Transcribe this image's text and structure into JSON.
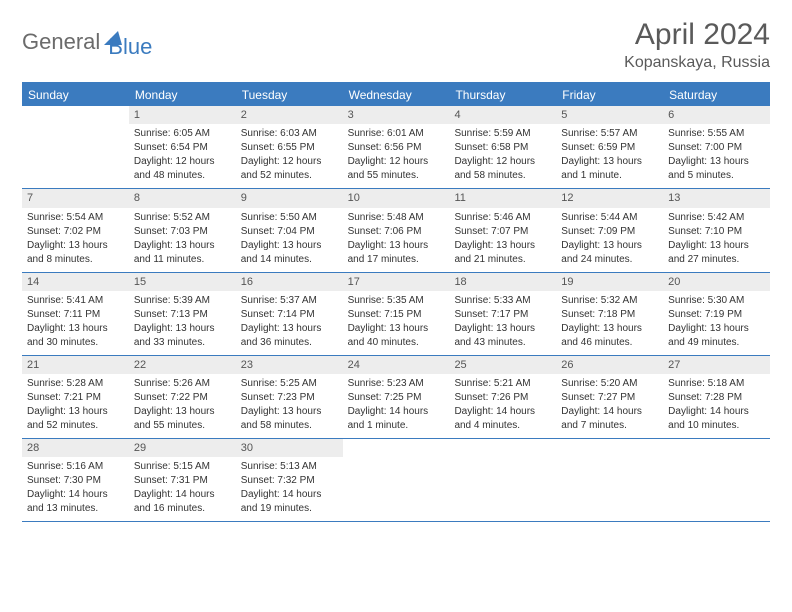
{
  "logo": {
    "part1": "General",
    "part2": "Blue"
  },
  "title": "April 2024",
  "location": "Kopanskaya, Russia",
  "colors": {
    "accent": "#3b7bbf",
    "header_bg": "#3b7bbf",
    "daynum_bg": "#ededed",
    "text": "#333333",
    "logo_gray": "#6b6b6b",
    "title_gray": "#5a5a5a"
  },
  "day_headers": [
    "Sunday",
    "Monday",
    "Tuesday",
    "Wednesday",
    "Thursday",
    "Friday",
    "Saturday"
  ],
  "weeks": [
    [
      {
        "empty": true
      },
      {
        "num": "1",
        "sunrise": "Sunrise: 6:05 AM",
        "sunset": "Sunset: 6:54 PM",
        "day1": "Daylight: 12 hours",
        "day2": "and 48 minutes."
      },
      {
        "num": "2",
        "sunrise": "Sunrise: 6:03 AM",
        "sunset": "Sunset: 6:55 PM",
        "day1": "Daylight: 12 hours",
        "day2": "and 52 minutes."
      },
      {
        "num": "3",
        "sunrise": "Sunrise: 6:01 AM",
        "sunset": "Sunset: 6:56 PM",
        "day1": "Daylight: 12 hours",
        "day2": "and 55 minutes."
      },
      {
        "num": "4",
        "sunrise": "Sunrise: 5:59 AM",
        "sunset": "Sunset: 6:58 PM",
        "day1": "Daylight: 12 hours",
        "day2": "and 58 minutes."
      },
      {
        "num": "5",
        "sunrise": "Sunrise: 5:57 AM",
        "sunset": "Sunset: 6:59 PM",
        "day1": "Daylight: 13 hours",
        "day2": "and 1 minute."
      },
      {
        "num": "6",
        "sunrise": "Sunrise: 5:55 AM",
        "sunset": "Sunset: 7:00 PM",
        "day1": "Daylight: 13 hours",
        "day2": "and 5 minutes."
      }
    ],
    [
      {
        "num": "7",
        "sunrise": "Sunrise: 5:54 AM",
        "sunset": "Sunset: 7:02 PM",
        "day1": "Daylight: 13 hours",
        "day2": "and 8 minutes."
      },
      {
        "num": "8",
        "sunrise": "Sunrise: 5:52 AM",
        "sunset": "Sunset: 7:03 PM",
        "day1": "Daylight: 13 hours",
        "day2": "and 11 minutes."
      },
      {
        "num": "9",
        "sunrise": "Sunrise: 5:50 AM",
        "sunset": "Sunset: 7:04 PM",
        "day1": "Daylight: 13 hours",
        "day2": "and 14 minutes."
      },
      {
        "num": "10",
        "sunrise": "Sunrise: 5:48 AM",
        "sunset": "Sunset: 7:06 PM",
        "day1": "Daylight: 13 hours",
        "day2": "and 17 minutes."
      },
      {
        "num": "11",
        "sunrise": "Sunrise: 5:46 AM",
        "sunset": "Sunset: 7:07 PM",
        "day1": "Daylight: 13 hours",
        "day2": "and 21 minutes."
      },
      {
        "num": "12",
        "sunrise": "Sunrise: 5:44 AM",
        "sunset": "Sunset: 7:09 PM",
        "day1": "Daylight: 13 hours",
        "day2": "and 24 minutes."
      },
      {
        "num": "13",
        "sunrise": "Sunrise: 5:42 AM",
        "sunset": "Sunset: 7:10 PM",
        "day1": "Daylight: 13 hours",
        "day2": "and 27 minutes."
      }
    ],
    [
      {
        "num": "14",
        "sunrise": "Sunrise: 5:41 AM",
        "sunset": "Sunset: 7:11 PM",
        "day1": "Daylight: 13 hours",
        "day2": "and 30 minutes."
      },
      {
        "num": "15",
        "sunrise": "Sunrise: 5:39 AM",
        "sunset": "Sunset: 7:13 PM",
        "day1": "Daylight: 13 hours",
        "day2": "and 33 minutes."
      },
      {
        "num": "16",
        "sunrise": "Sunrise: 5:37 AM",
        "sunset": "Sunset: 7:14 PM",
        "day1": "Daylight: 13 hours",
        "day2": "and 36 minutes."
      },
      {
        "num": "17",
        "sunrise": "Sunrise: 5:35 AM",
        "sunset": "Sunset: 7:15 PM",
        "day1": "Daylight: 13 hours",
        "day2": "and 40 minutes."
      },
      {
        "num": "18",
        "sunrise": "Sunrise: 5:33 AM",
        "sunset": "Sunset: 7:17 PM",
        "day1": "Daylight: 13 hours",
        "day2": "and 43 minutes."
      },
      {
        "num": "19",
        "sunrise": "Sunrise: 5:32 AM",
        "sunset": "Sunset: 7:18 PM",
        "day1": "Daylight: 13 hours",
        "day2": "and 46 minutes."
      },
      {
        "num": "20",
        "sunrise": "Sunrise: 5:30 AM",
        "sunset": "Sunset: 7:19 PM",
        "day1": "Daylight: 13 hours",
        "day2": "and 49 minutes."
      }
    ],
    [
      {
        "num": "21",
        "sunrise": "Sunrise: 5:28 AM",
        "sunset": "Sunset: 7:21 PM",
        "day1": "Daylight: 13 hours",
        "day2": "and 52 minutes."
      },
      {
        "num": "22",
        "sunrise": "Sunrise: 5:26 AM",
        "sunset": "Sunset: 7:22 PM",
        "day1": "Daylight: 13 hours",
        "day2": "and 55 minutes."
      },
      {
        "num": "23",
        "sunrise": "Sunrise: 5:25 AM",
        "sunset": "Sunset: 7:23 PM",
        "day1": "Daylight: 13 hours",
        "day2": "and 58 minutes."
      },
      {
        "num": "24",
        "sunrise": "Sunrise: 5:23 AM",
        "sunset": "Sunset: 7:25 PM",
        "day1": "Daylight: 14 hours",
        "day2": "and 1 minute."
      },
      {
        "num": "25",
        "sunrise": "Sunrise: 5:21 AM",
        "sunset": "Sunset: 7:26 PM",
        "day1": "Daylight: 14 hours",
        "day2": "and 4 minutes."
      },
      {
        "num": "26",
        "sunrise": "Sunrise: 5:20 AM",
        "sunset": "Sunset: 7:27 PM",
        "day1": "Daylight: 14 hours",
        "day2": "and 7 minutes."
      },
      {
        "num": "27",
        "sunrise": "Sunrise: 5:18 AM",
        "sunset": "Sunset: 7:28 PM",
        "day1": "Daylight: 14 hours",
        "day2": "and 10 minutes."
      }
    ],
    [
      {
        "num": "28",
        "sunrise": "Sunrise: 5:16 AM",
        "sunset": "Sunset: 7:30 PM",
        "day1": "Daylight: 14 hours",
        "day2": "and 13 minutes."
      },
      {
        "num": "29",
        "sunrise": "Sunrise: 5:15 AM",
        "sunset": "Sunset: 7:31 PM",
        "day1": "Daylight: 14 hours",
        "day2": "and 16 minutes."
      },
      {
        "num": "30",
        "sunrise": "Sunrise: 5:13 AM",
        "sunset": "Sunset: 7:32 PM",
        "day1": "Daylight: 14 hours",
        "day2": "and 19 minutes."
      },
      {
        "empty": true
      },
      {
        "empty": true
      },
      {
        "empty": true
      },
      {
        "empty": true
      }
    ]
  ]
}
